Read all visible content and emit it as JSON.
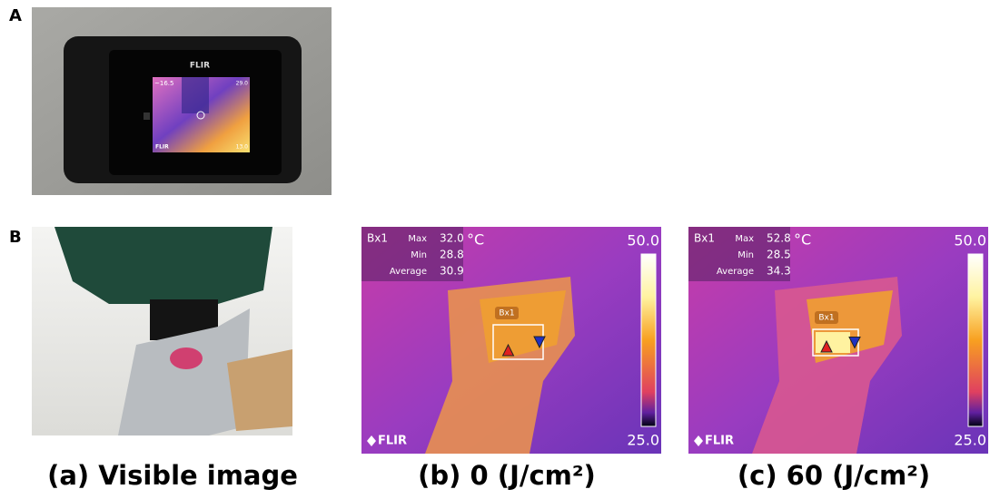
{
  "panel_a": {
    "label": "A",
    "camera": {
      "brand": "FLIR",
      "screen_reading": "~16.5",
      "screen_scale_max": "29.0",
      "screen_scale_min": "13.0",
      "screen_logo": "FLIR"
    }
  },
  "panel_b": {
    "label": "B",
    "visible": {
      "caption": "(a) Visible image"
    },
    "thermal": [
      {
        "caption": "(b) 0 (J/cm²)",
        "box": "Bx1",
        "unit": "°C",
        "scale_max": "50.0",
        "scale_min": "25.0",
        "logo": "FLIR",
        "stats": [
          {
            "name": "Max",
            "value": "32.0"
          },
          {
            "name": "Min",
            "value": "28.8"
          },
          {
            "name": "Average",
            "value": "30.9"
          }
        ]
      },
      {
        "caption": "(c) 60 (J/cm²)",
        "box": "Bx1",
        "unit": "°C",
        "scale_max": "50.0",
        "scale_min": "25.0",
        "logo": "FLIR",
        "stats": [
          {
            "name": "Max",
            "value": "52.8"
          },
          {
            "name": "Min",
            "value": "28.5"
          },
          {
            "name": "Average",
            "value": "34.3"
          }
        ]
      }
    ]
  }
}
